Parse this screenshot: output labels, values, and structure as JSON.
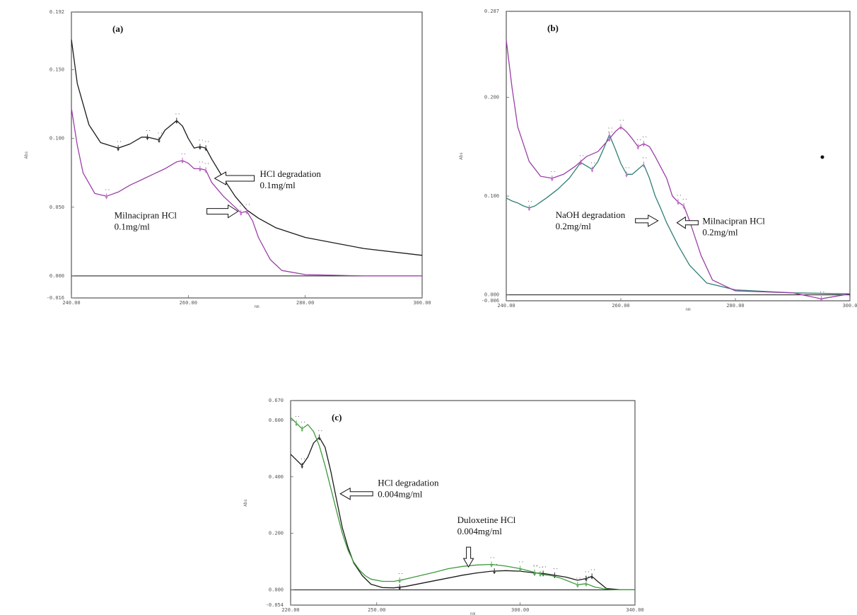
{
  "colors": {
    "black": "#1a1a1a",
    "magenta": "#9b3fa8",
    "teal": "#2f7f74",
    "green": "#3c9a3c",
    "marker_pink": "#c46cc8",
    "marker_green": "#5fb05f",
    "frame": "#333333"
  },
  "chart_data": [
    {
      "id": "a",
      "type": "line",
      "panel_label": "(a)",
      "xlabel": "nm",
      "ylabel": "Abs",
      "x_ticks": [
        "240.00",
        "260.00",
        "280.00",
        "300.00"
      ],
      "y_ticks": [
        "-0.016",
        "0.000",
        "0.050",
        "0.100",
        "0.150",
        "0.192"
      ],
      "xlim": [
        240,
        300
      ],
      "ylim": [
        -0.016,
        0.192
      ],
      "grid": false,
      "legend": "none",
      "series": [
        {
          "name": "HCl degradation 0.1mg/ml",
          "color_key": "black",
          "x": [
            240,
            241,
            243,
            245,
            248,
            250,
            252,
            253,
            255,
            256,
            258,
            259,
            260,
            261,
            262,
            263,
            264,
            266,
            268,
            270,
            272,
            275,
            280,
            290,
            300
          ],
          "y": [
            0.172,
            0.14,
            0.11,
            0.097,
            0.093,
            0.096,
            0.101,
            0.101,
            0.099,
            0.106,
            0.113,
            0.109,
            0.1,
            0.093,
            0.094,
            0.093,
            0.085,
            0.071,
            0.058,
            0.048,
            0.042,
            0.035,
            0.028,
            0.02,
            0.015
          ]
        },
        {
          "name": "Milnacipran HCl 0.1mg/ml",
          "color_key": "magenta",
          "x": [
            240,
            241,
            242,
            244,
            246,
            248,
            250,
            252,
            254,
            256,
            258,
            259,
            260,
            261,
            262,
            263,
            264,
            266,
            268,
            269,
            270,
            271,
            272,
            274,
            276,
            280,
            290,
            300
          ],
          "y": [
            0.122,
            0.095,
            0.075,
            0.06,
            0.058,
            0.061,
            0.066,
            0.07,
            0.074,
            0.078,
            0.083,
            0.084,
            0.082,
            0.078,
            0.078,
            0.077,
            0.068,
            0.058,
            0.05,
            0.046,
            0.047,
            0.04,
            0.028,
            0.012,
            0.004,
            0.001,
            0.0,
            0.0
          ]
        }
      ],
      "annotations": [
        {
          "line1": "HCl degradation",
          "line2": "0.1mg/ml",
          "x": 264.5,
          "y": 0.071
        },
        {
          "line1": "Milnacipran HCl",
          "line2": "0.1mg/ml",
          "x": 268.5,
          "y": 0.047
        }
      ]
    },
    {
      "id": "b",
      "type": "line",
      "panel_label": "(b)",
      "xlabel": "nm",
      "ylabel": "Abs",
      "x_ticks": [
        "240.00",
        "260.00",
        "280.00",
        "300.0"
      ],
      "y_ticks": [
        "-0.006",
        "0.000",
        "0.100",
        "0.200",
        "0.287"
      ],
      "xlim": [
        240,
        300
      ],
      "ylim": [
        -0.006,
        0.287
      ],
      "grid": false,
      "legend": "none",
      "series": [
        {
          "name": "NaOH degradation 0.2mg/ml",
          "color_key": "teal",
          "x": [
            240,
            241,
            242,
            243,
            244,
            245,
            247,
            249,
            251,
            253,
            255,
            256,
            257,
            258,
            259,
            260,
            261,
            262,
            263,
            264,
            265,
            266,
            267,
            268,
            270,
            272,
            275,
            280,
            290,
            300
          ],
          "y": [
            0.098,
            0.095,
            0.093,
            0.09,
            0.088,
            0.09,
            0.098,
            0.107,
            0.118,
            0.134,
            0.127,
            0.135,
            0.148,
            0.162,
            0.148,
            0.133,
            0.122,
            0.122,
            0.127,
            0.132,
            0.118,
            0.1,
            0.087,
            0.073,
            0.05,
            0.03,
            0.012,
            0.005,
            0.002,
            0.001
          ]
        },
        {
          "name": "Milnacipran HCl 0.2mg/ml",
          "color_key": "magenta",
          "x": [
            240,
            241,
            242,
            244,
            246,
            248,
            250,
            252,
            254,
            256,
            258,
            259,
            260,
            261,
            262,
            263,
            264,
            265,
            266,
            268,
            269,
            270,
            271,
            272,
            274,
            276,
            280,
            290,
            295,
            300
          ],
          "y": [
            0.258,
            0.21,
            0.17,
            0.135,
            0.12,
            0.118,
            0.122,
            0.13,
            0.14,
            0.145,
            0.158,
            0.165,
            0.17,
            0.165,
            0.158,
            0.15,
            0.153,
            0.15,
            0.14,
            0.118,
            0.1,
            0.094,
            0.09,
            0.075,
            0.04,
            0.015,
            0.004,
            0.002,
            -0.004,
            0.001
          ]
        }
      ],
      "annotations": [
        {
          "line1": "NaOH degradation",
          "line2": "0.2mg/ml",
          "x": 266.5,
          "y": 0.075
        },
        {
          "line1": "Milnacipran HCl",
          "line2": "0.2mg/ml",
          "x": 269.8,
          "y": 0.073
        }
      ]
    },
    {
      "id": "c",
      "type": "line",
      "panel_label": "(c)",
      "xlabel": "nm",
      "ylabel": "Abs",
      "x_ticks": [
        "220.00",
        "250.00",
        "300.00",
        "340.00"
      ],
      "y_ticks": [
        "-0.054",
        "0.000",
        "0.200",
        "0.400",
        "0.600",
        "0.670"
      ],
      "xlim": [
        220,
        340
      ],
      "ylim": [
        -0.054,
        0.67
      ],
      "grid": false,
      "legend": "none",
      "series": [
        {
          "name": "HCl degradation 0.004mg/ml",
          "color_key": "black",
          "x": [
            220,
            222,
            224,
            226,
            228,
            230,
            232,
            234,
            236,
            238,
            240,
            242,
            245,
            248,
            252,
            256,
            260,
            265,
            270,
            275,
            280,
            285,
            290,
            295,
            300,
            305,
            308,
            310,
            313,
            316,
            320,
            323,
            325,
            327,
            330,
            335,
            340
          ],
          "y": [
            0.48,
            0.46,
            0.44,
            0.47,
            0.52,
            0.54,
            0.505,
            0.42,
            0.32,
            0.22,
            0.15,
            0.095,
            0.05,
            0.02,
            0.008,
            0.007,
            0.012,
            0.022,
            0.032,
            0.042,
            0.052,
            0.06,
            0.066,
            0.068,
            0.066,
            0.06,
            0.058,
            0.055,
            0.05,
            0.045,
            0.034,
            0.04,
            0.048,
            0.03,
            0.005,
            0.0,
            0.0
          ]
        },
        {
          "name": "Duloxetine HCl 0.004mg/ml",
          "color_key": "green",
          "x": [
            220,
            222,
            224,
            226,
            228,
            230,
            232,
            234,
            236,
            238,
            240,
            242,
            244,
            246,
            248,
            252,
            256,
            260,
            265,
            270,
            275,
            280,
            285,
            290,
            295,
            300,
            305,
            308,
            311,
            314,
            317,
            320,
            323,
            326,
            329,
            333,
            340
          ],
          "y": [
            0.61,
            0.59,
            0.57,
            0.585,
            0.56,
            0.51,
            0.44,
            0.36,
            0.28,
            0.2,
            0.14,
            0.098,
            0.07,
            0.05,
            0.038,
            0.03,
            0.03,
            0.038,
            0.05,
            0.062,
            0.075,
            0.083,
            0.088,
            0.09,
            0.084,
            0.075,
            0.062,
            0.054,
            0.05,
            0.042,
            0.03,
            0.018,
            0.022,
            0.01,
            0.004,
            0.0,
            0.0
          ]
        }
      ],
      "annotations": [
        {
          "line1": "HCl degradation",
          "line2": "0.004mg/ml",
          "x": 237.3,
          "y": 0.34
        },
        {
          "line1": "Duloxetine HCl",
          "line2": "0.004mg/ml",
          "x": 282,
          "y": 0.076
        }
      ]
    }
  ]
}
